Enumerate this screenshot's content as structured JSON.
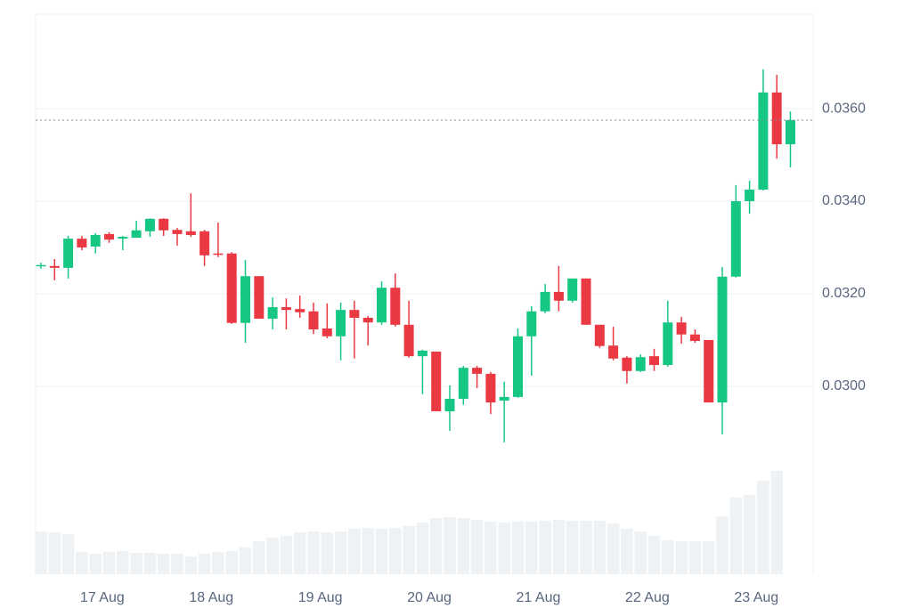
{
  "chart_data": {
    "type": "candlestick",
    "categories": [
      null,
      null,
      null,
      null,
      "17 Aug",
      null,
      null,
      null,
      null,
      null,
      null,
      null,
      "18 Aug",
      null,
      null,
      null,
      null,
      null,
      null,
      null,
      "19 Aug",
      null,
      null,
      null,
      null,
      null,
      null,
      null,
      "20 Aug",
      null,
      null,
      null,
      null,
      null,
      null,
      null,
      "21 Aug",
      null,
      null,
      null,
      null,
      null,
      null,
      null,
      "22 Aug",
      null,
      null,
      null,
      null,
      null,
      null,
      null,
      "23 Aug",
      null,
      null,
      null
    ],
    "open": [
      0.03262,
      0.0326,
      0.03256,
      0.03319,
      0.03302,
      0.03329,
      0.03319,
      0.03321,
      0.03335,
      0.03362,
      0.03338,
      0.03335,
      0.03335,
      0.03287,
      0.03287,
      0.03137,
      0.03238,
      0.03146,
      0.03171,
      0.03167,
      0.03162,
      0.03125,
      0.03108,
      0.03165,
      0.03148,
      0.03138,
      0.03213,
      0.03133,
      0.03065,
      0.03075,
      0.02946,
      0.02973,
      0.0304,
      0.03027,
      0.02969,
      0.02977,
      0.03108,
      0.03162,
      0.03204,
      0.03185,
      0.03233,
      0.03133,
      0.03088,
      0.03062,
      0.03033,
      0.03065,
      0.03046,
      0.03138,
      0.03112,
      0.031,
      0.02965,
      0.03237,
      0.034,
      0.03425,
      0.03635,
      0.03523
    ],
    "high": [
      0.03267,
      0.03275,
      0.03325,
      0.03325,
      0.03331,
      0.03333,
      0.03325,
      0.03358,
      0.03363,
      0.03363,
      0.03342,
      0.03417,
      0.03338,
      0.03354,
      0.0329,
      0.03273,
      0.03238,
      0.03192,
      0.0319,
      0.03196,
      0.03181,
      0.03179,
      0.03181,
      0.03185,
      0.03152,
      0.03227,
      0.03244,
      0.03185,
      0.03079,
      0.03075,
      0.03002,
      0.03044,
      0.03044,
      0.03031,
      0.0301,
      0.03125,
      0.03173,
      0.03221,
      0.0326,
      0.03233,
      0.03233,
      0.03133,
      0.03129,
      0.03065,
      0.03069,
      0.03081,
      0.03185,
      0.0315,
      0.03123,
      0.031,
      0.03258,
      0.03435,
      0.03444,
      0.03685,
      0.03673,
      0.03594
    ],
    "low": [
      0.03254,
      0.03229,
      0.03233,
      0.03294,
      0.03287,
      0.0331,
      0.03294,
      0.03321,
      0.03323,
      0.03325,
      0.03304,
      0.03323,
      0.0326,
      0.03279,
      0.03135,
      0.03094,
      0.03146,
      0.03123,
      0.03123,
      0.03148,
      0.03113,
      0.03104,
      0.03056,
      0.0306,
      0.03088,
      0.03133,
      0.03129,
      0.03062,
      0.02983,
      0.02946,
      0.02904,
      0.0296,
      0.02996,
      0.0294,
      0.02879,
      0.02975,
      0.03023,
      0.03158,
      0.03162,
      0.03181,
      0.03133,
      0.03083,
      0.03056,
      0.03006,
      0.03031,
      0.03033,
      0.03042,
      0.03092,
      0.03094,
      0.02965,
      0.02896,
      0.03235,
      0.03373,
      0.03423,
      0.03492,
      0.03473
    ],
    "close": [
      0.03262,
      0.03256,
      0.03319,
      0.033,
      0.03327,
      0.03317,
      0.03323,
      0.03337,
      0.03362,
      0.03337,
      0.03329,
      0.03327,
      0.03283,
      0.03285,
      0.03137,
      0.03238,
      0.03146,
      0.03171,
      0.03165,
      0.0316,
      0.03123,
      0.03108,
      0.03165,
      0.03148,
      0.03138,
      0.03213,
      0.03133,
      0.03065,
      0.03077,
      0.02946,
      0.02973,
      0.0304,
      0.03027,
      0.02965,
      0.02977,
      0.03108,
      0.03162,
      0.03204,
      0.03185,
      0.03233,
      0.03133,
      0.03087,
      0.0306,
      0.03033,
      0.03063,
      0.03046,
      0.03138,
      0.03112,
      0.03098,
      0.02965,
      0.03237,
      0.034,
      0.03425,
      0.03635,
      0.03523,
      0.03575
    ],
    "volume": [
      48,
      47,
      45,
      25,
      23,
      25,
      26,
      24,
      24,
      23,
      23,
      20,
      23,
      25,
      26,
      30,
      37,
      41,
      43,
      47,
      48,
      47,
      48,
      51,
      52,
      51,
      52,
      54,
      58,
      63,
      64,
      63,
      61,
      59,
      58,
      59,
      59,
      60,
      61,
      60,
      60,
      60,
      57,
      51,
      48,
      43,
      38,
      37,
      37,
      37,
      65,
      86,
      89,
      105,
      116,
      null
    ],
    "up_color": "#16c784",
    "down_color": "#ea3943",
    "volume_color": "#eff2f5",
    "ylim": [
      0.02594,
      0.03804
    ],
    "yticks": [
      {
        "value": 0.03,
        "label": "0.0300"
      },
      {
        "value": 0.032,
        "label": "0.0320"
      },
      {
        "value": 0.034,
        "label": "0.0340"
      },
      {
        "value": 0.036,
        "label": "0.0360"
      }
    ],
    "grid": true
  }
}
